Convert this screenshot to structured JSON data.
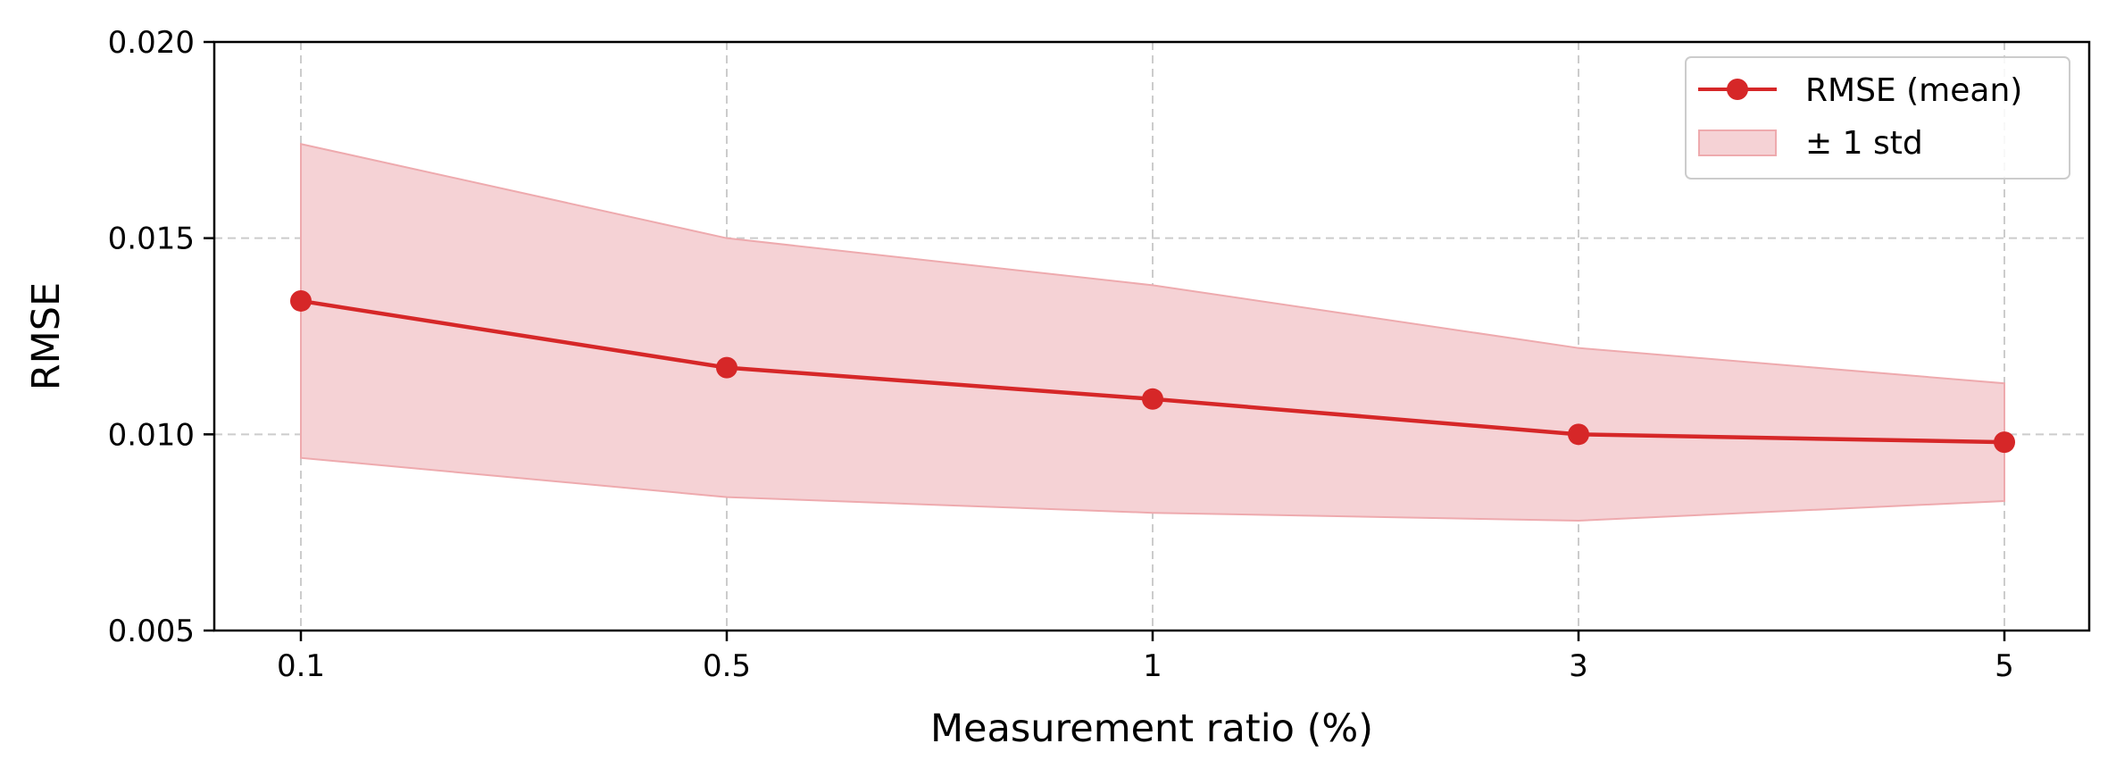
{
  "chart_data": {
    "type": "line",
    "title": "",
    "xlabel": "Measurement ratio (%)",
    "ylabel": "RMSE",
    "categories": [
      "0.1",
      "0.5",
      "1",
      "3",
      "5"
    ],
    "series": [
      {
        "name": "RMSE (mean)",
        "values": [
          0.0134,
          0.0117,
          0.0109,
          0.01,
          0.0098
        ],
        "std_band_label": "± 1 std",
        "upper": [
          0.0174,
          0.015,
          0.0138,
          0.0122,
          0.0113
        ],
        "lower": [
          0.0094,
          0.0084,
          0.008,
          0.0078,
          0.0083
        ]
      }
    ],
    "ylim": [
      0.005,
      0.02
    ],
    "yticks": [
      0.005,
      0.01,
      0.015,
      0.02
    ],
    "ytick_labels": [
      "0.005",
      "0.010",
      "0.015",
      "0.020"
    ],
    "grid": true,
    "legend_position": "top-right",
    "colors": {
      "line": "#d62728",
      "band": "#f5d2d5",
      "band_edge": "#eeaaae",
      "grid": "#cccccc"
    }
  }
}
